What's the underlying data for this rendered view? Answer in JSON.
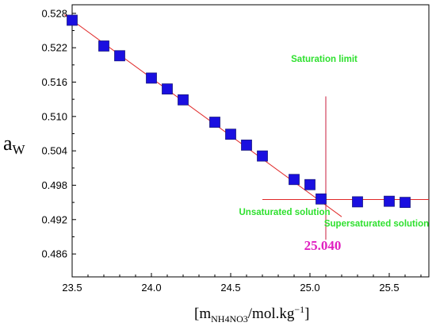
{
  "chart_data": {
    "type": "scatter",
    "xlim": [
      23.5,
      25.75
    ],
    "ylim": [
      0.482,
      0.5295
    ],
    "xticks": [
      {
        "value": 23.5,
        "label": "23.5"
      },
      {
        "value": 24.0,
        "label": "24.0"
      },
      {
        "value": 24.5,
        "label": "24.5"
      },
      {
        "value": 25.0,
        "label": "25.0"
      },
      {
        "value": 25.5,
        "label": "25.5"
      }
    ],
    "yticks": [
      {
        "value": 0.486,
        "label": "0.486"
      },
      {
        "value": 0.492,
        "label": "0.492"
      },
      {
        "value": 0.498,
        "label": "0.498"
      },
      {
        "value": 0.504,
        "label": "0.504"
      },
      {
        "value": 0.51,
        "label": "0.510"
      },
      {
        "value": 0.516,
        "label": "0.516"
      },
      {
        "value": 0.522,
        "label": "0.522"
      },
      {
        "value": 0.528,
        "label": "0.528"
      }
    ],
    "ylabel_main": "a",
    "ylabel_sub": "W",
    "xlabel_pre": "[m",
    "xlabel_sub": "NH4NO3",
    "xlabel_mid": "/mol.kg",
    "xlabel_sup": "−1",
    "xlabel_post": "]",
    "points": [
      {
        "x": 23.5,
        "y": 0.5268
      },
      {
        "x": 23.7,
        "y": 0.5223
      },
      {
        "x": 23.8,
        "y": 0.5206
      },
      {
        "x": 24.0,
        "y": 0.5167
      },
      {
        "x": 24.1,
        "y": 0.5148
      },
      {
        "x": 24.2,
        "y": 0.5129
      },
      {
        "x": 24.4,
        "y": 0.509
      },
      {
        "x": 24.5,
        "y": 0.5069
      },
      {
        "x": 24.6,
        "y": 0.505
      },
      {
        "x": 24.7,
        "y": 0.5031
      },
      {
        "x": 24.9,
        "y": 0.499
      },
      {
        "x": 25.0,
        "y": 0.4981
      },
      {
        "x": 25.07,
        "y": 0.4956
      },
      {
        "x": 25.3,
        "y": 0.4951
      },
      {
        "x": 25.5,
        "y": 0.4952
      },
      {
        "x": 25.6,
        "y": 0.495
      }
    ],
    "unsaturated_fit": {
      "x1": 23.45,
      "y1": 0.5278,
      "x2": 25.2,
      "y2": 0.4925
    },
    "supersaturated_fit": {
      "x1": 24.7,
      "y1": 0.4955,
      "x2": 25.75,
      "y2": 0.4955
    },
    "saturation_line": {
      "x": 25.1,
      "y_top": 0.5135,
      "y_bottom": 0.4885
    },
    "annotations": {
      "saturation_limit": {
        "text": "Saturation limit",
        "x": 25.09,
        "y": 0.5195
      },
      "unsaturated": {
        "text": "Unsaturated solution",
        "x": 24.84,
        "y": 0.4928
      },
      "supersaturated": {
        "text": "Supersaturated solution",
        "x": 25.42,
        "y": 0.4908
      },
      "intercept_value": {
        "text": "25.040",
        "x": 25.08,
        "y": 0.4867
      }
    },
    "colors": {
      "marker": "#1a0fe0",
      "marker_edge": "#1a1a80",
      "fit_line": "#e02828",
      "saturation_line": "#c81e3c",
      "annotation_green": "#2ee02e",
      "intercept_value": "#e020c0"
    }
  }
}
